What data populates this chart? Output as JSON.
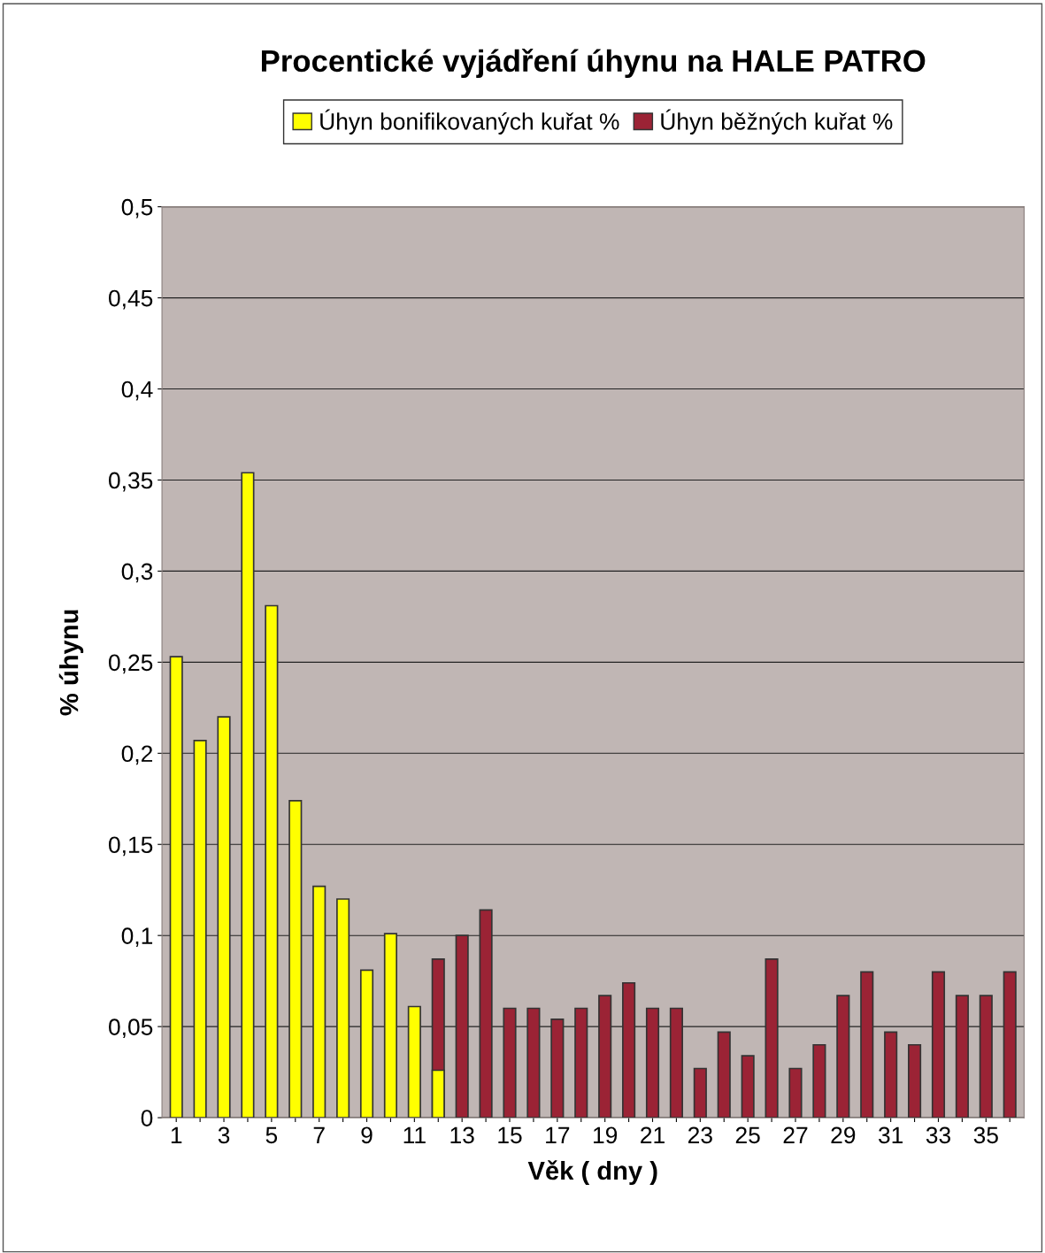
{
  "chart_data": {
    "type": "bar",
    "title": "Procentické vyjádření úhynu na HALE PATRO",
    "xlabel": "Věk ( dny )",
    "ylabel": "% úhynu",
    "categories": [
      "1",
      null,
      "3",
      null,
      "5",
      null,
      "7",
      null,
      "9",
      null,
      "11",
      null,
      "13",
      null,
      "15",
      null,
      "17",
      null,
      "19",
      null,
      "21",
      null,
      "23",
      null,
      "25",
      null,
      "27",
      null,
      "29",
      null,
      "31",
      null,
      "33",
      null,
      "35",
      null
    ],
    "series": [
      {
        "name": "Úhyn bonifikovaných kuřat %",
        "color": "#ffff00",
        "values": [
          0.253,
          0.207,
          0.22,
          0.354,
          0.281,
          0.174,
          0.127,
          0.12,
          0.081,
          0.101,
          0.061,
          0.026,
          null,
          null,
          null,
          null,
          null,
          null,
          null,
          null,
          null,
          null,
          null,
          null,
          null,
          null,
          null,
          null,
          null,
          null,
          null,
          null,
          null,
          null,
          null,
          null
        ]
      },
      {
        "name": "Úhyn běžných kuřat %",
        "color": "#9b2335",
        "values": [
          null,
          null,
          null,
          null,
          null,
          null,
          null,
          null,
          null,
          null,
          null,
          0.087,
          0.1,
          0.114,
          0.06,
          0.06,
          0.054,
          0.06,
          0.067,
          0.074,
          0.06,
          0.06,
          0.027,
          0.047,
          0.034,
          0.087,
          0.027,
          0.04,
          0.067,
          0.08,
          0.047,
          0.04,
          0.08,
          0.067,
          0.067,
          0.08
        ]
      }
    ],
    "ylim": [
      0,
      0.5
    ],
    "yticks": [
      0,
      {
        "value": 0.05,
        "label": "0,05"
      },
      {
        "value": 0.1,
        "label": "0,1"
      },
      {
        "value": 0.15,
        "label": "0,15"
      },
      {
        "value": 0.2,
        "label": "0,2"
      },
      {
        "value": 0.25,
        "label": "0,25"
      },
      {
        "value": 0.3,
        "label": "0,3"
      },
      {
        "value": 0.35,
        "label": "0,35"
      },
      {
        "value": 0.4,
        "label": "0,4"
      },
      {
        "value": 0.45,
        "label": "0,45"
      },
      {
        "value": 0.5,
        "label": "0,5"
      }
    ],
    "grid": "y",
    "legend": "top"
  }
}
